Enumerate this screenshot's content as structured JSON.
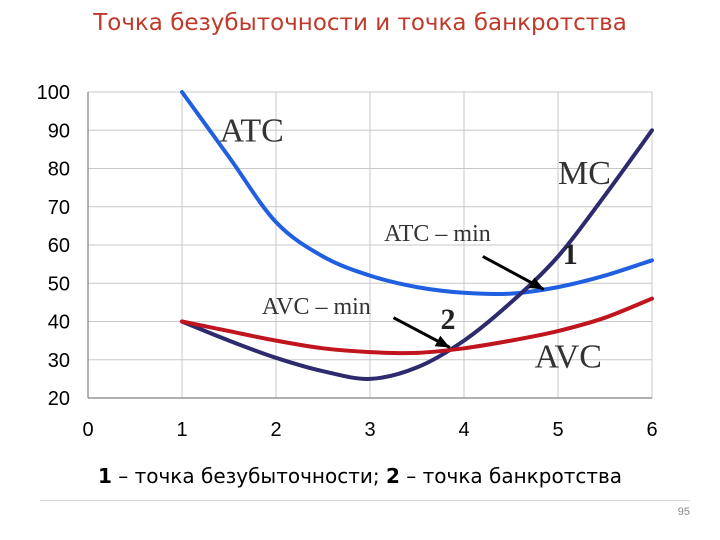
{
  "slide": {
    "title": "Точка безубыточности и точка  банкротства",
    "caption": {
      "n1": "1",
      "t1": " – точка безубыточности; ",
      "n2": "2",
      "t2": " – точка  банкротства"
    },
    "page_number": "95"
  },
  "chart_data": {
    "type": "line",
    "xlim": [
      0,
      6
    ],
    "ylim": [
      20,
      100
    ],
    "x_ticks": [
      "0",
      "1",
      "2",
      "3",
      "4",
      "5",
      "6"
    ],
    "y_ticks": [
      "20",
      "30",
      "40",
      "50",
      "60",
      "70",
      "80",
      "90",
      "100"
    ],
    "grid": true,
    "series": [
      {
        "name": "ATC",
        "color": "#1f5fe0",
        "points": [
          [
            1,
            100
          ],
          [
            1.5,
            83
          ],
          [
            2,
            66
          ],
          [
            2.5,
            57
          ],
          [
            3,
            52
          ],
          [
            3.5,
            49
          ],
          [
            4,
            47.5
          ],
          [
            4.5,
            47.3
          ],
          [
            5,
            49
          ],
          [
            5.5,
            52
          ],
          [
            6,
            56
          ]
        ]
      },
      {
        "name": "MC",
        "color": "#2e2a6e",
        "points": [
          [
            1,
            40
          ],
          [
            1.5,
            35
          ],
          [
            2,
            30.5
          ],
          [
            2.5,
            27
          ],
          [
            3,
            25
          ],
          [
            3.5,
            28
          ],
          [
            4,
            35
          ],
          [
            4.5,
            45
          ],
          [
            5,
            57
          ],
          [
            5.5,
            73
          ],
          [
            6,
            90
          ]
        ]
      },
      {
        "name": "AVC",
        "color": "#c0141e",
        "points": [
          [
            1,
            40
          ],
          [
            1.5,
            37.5
          ],
          [
            2,
            35
          ],
          [
            2.5,
            33
          ],
          [
            3,
            32
          ],
          [
            3.5,
            31.8
          ],
          [
            4,
            33
          ],
          [
            4.5,
            35
          ],
          [
            5,
            37.5
          ],
          [
            5.5,
            41
          ],
          [
            6,
            46
          ]
        ]
      }
    ],
    "annotations": [
      {
        "text": "ATC – min",
        "x": 3.15,
        "y": 61
      },
      {
        "text": "AVC – min",
        "x": 1.85,
        "y": 42
      },
      {
        "text": "1",
        "x": 5.05,
        "y": 55
      },
      {
        "text": "2",
        "x": 3.75,
        "y": 38
      }
    ],
    "arrows": [
      {
        "from": [
          4.2,
          57
        ],
        "to": [
          4.85,
          48.4
        ]
      },
      {
        "from": [
          3.25,
          41
        ],
        "to": [
          3.85,
          33.2
        ]
      }
    ],
    "key_points": [
      {
        "label": "1",
        "x": 4.85,
        "y": 48.4
      },
      {
        "label": "2",
        "x": 3.85,
        "y": 33.2
      }
    ]
  }
}
